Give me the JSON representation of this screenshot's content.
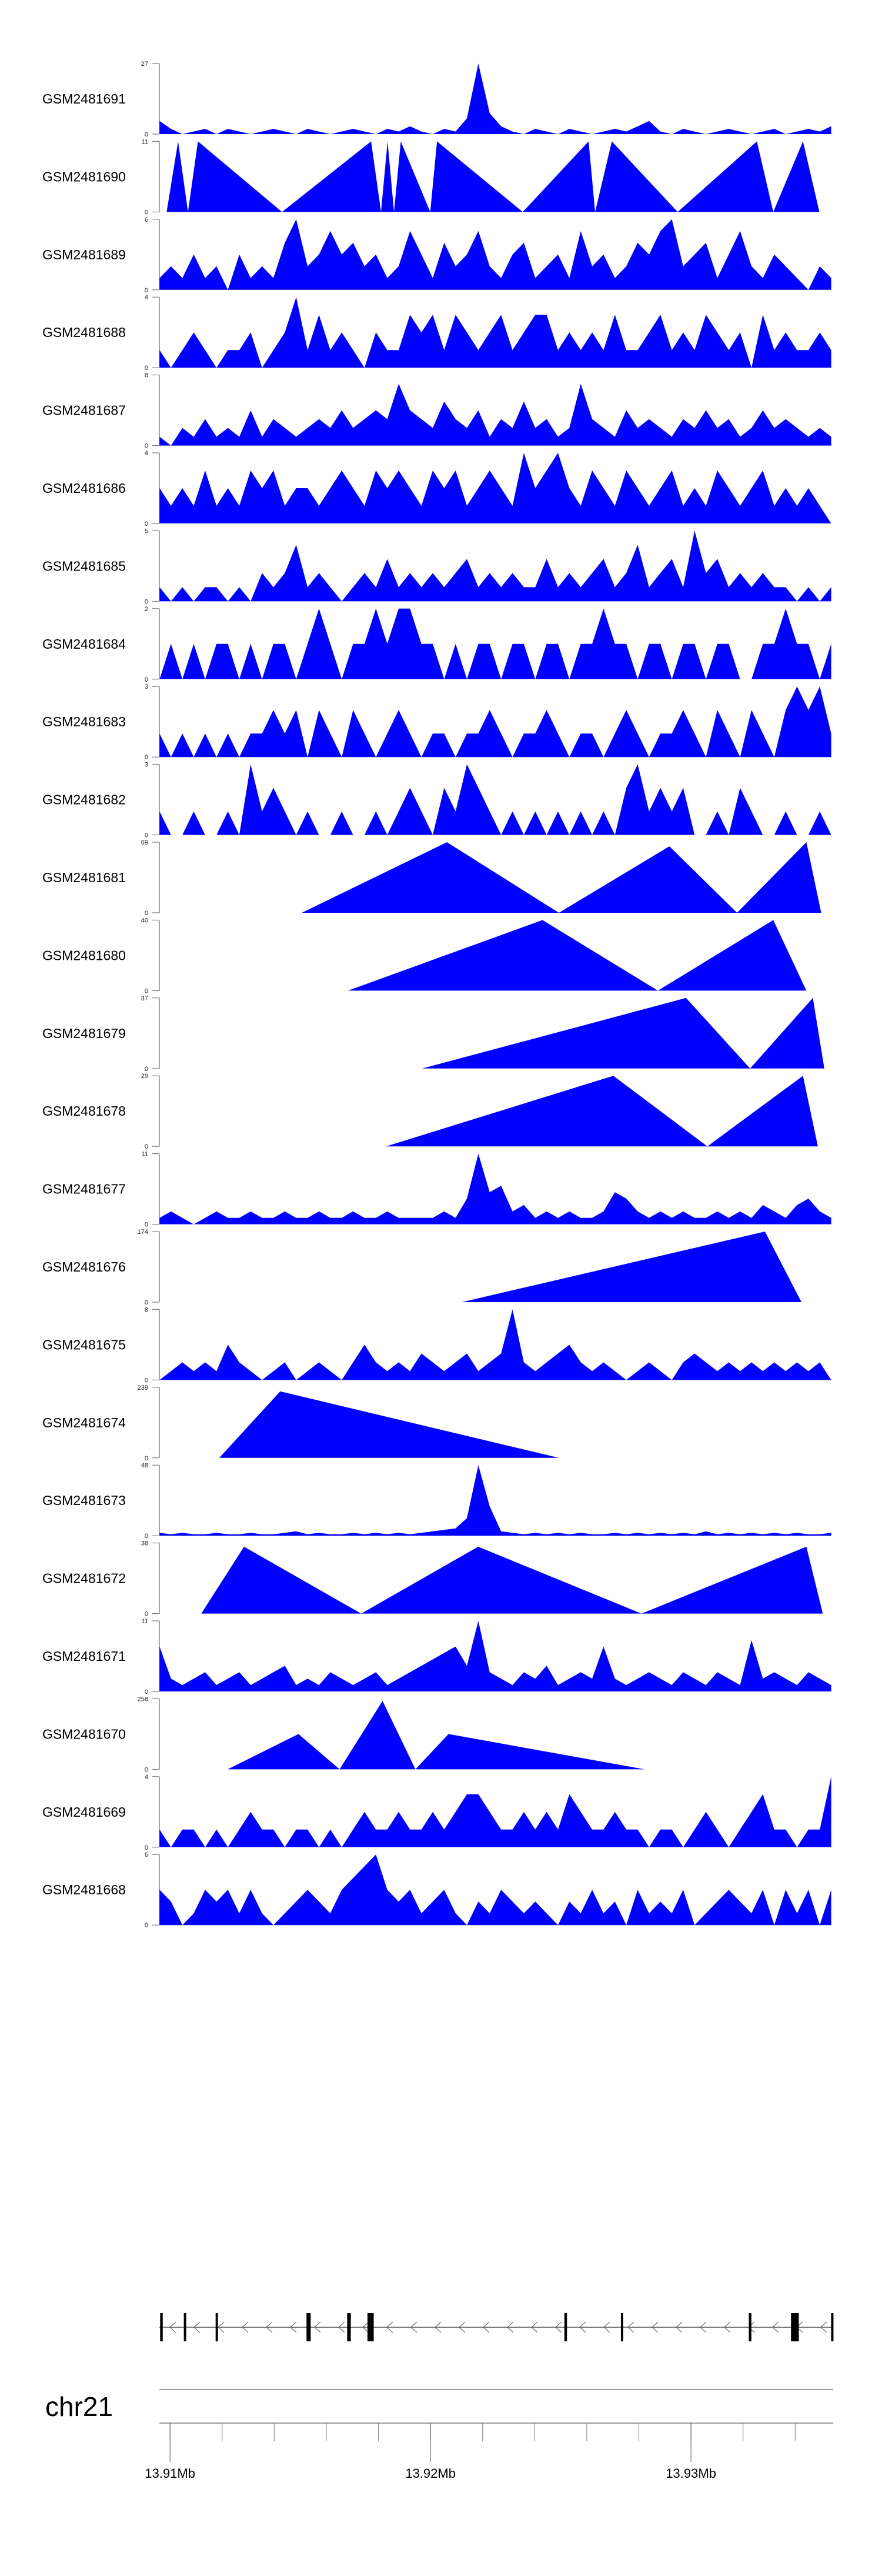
{
  "chart_data": {
    "type": "area",
    "title": "",
    "chromosome": "chr21",
    "xlim_kb": [
      13909.59,
      13935.46
    ],
    "x_ticks": [
      {
        "kb": 13910,
        "label": "13.91Mb"
      },
      {
        "kb": 13920,
        "label": "13.92Mb"
      },
      {
        "kb": 13930,
        "label": "13.93Mb"
      }
    ],
    "minor_tick_step_kb": 2,
    "fill_color": "#0000ff",
    "gene": {
      "strand": "-",
      "exons_kb": [
        [
          13909.62,
          13909.72
        ],
        [
          13910.53,
          13910.58
        ],
        [
          13911.75,
          13911.8
        ],
        [
          13915.24,
          13915.4
        ],
        [
          13916.8,
          13916.94
        ],
        [
          13917.58,
          13917.82
        ],
        [
          13925.14,
          13925.24
        ],
        [
          13927.31,
          13927.4
        ],
        [
          13932.22,
          13932.32
        ],
        [
          13933.84,
          13934.14
        ],
        [
          13935.38,
          13935.46
        ]
      ]
    },
    "bin_start_kb": 13909.6,
    "bin_step_kb": 0.437,
    "tracks": [
      {
        "name": "GSM2481691",
        "ymax": 27,
        "values": [
          5,
          2,
          0,
          1,
          2,
          0,
          2,
          1,
          0,
          1,
          2,
          1,
          0,
          2,
          1,
          0,
          1,
          2,
          1,
          0,
          2,
          1,
          3,
          1,
          0,
          2,
          1,
          6,
          27,
          8,
          3,
          1,
          0,
          2,
          1,
          0,
          2,
          1,
          0,
          1,
          2,
          1,
          3,
          5,
          1,
          0,
          2,
          1,
          0,
          1,
          2,
          1,
          0,
          1,
          2,
          0,
          1,
          2,
          1,
          3
        ]
      },
      {
        "name": "GSM2481690",
        "ymax": 11,
        "points": [
          [
            13909.87,
            0
          ],
          [
            13910.31,
            11
          ],
          [
            13910.69,
            0
          ],
          [
            13911.07,
            11
          ],
          [
            13914.3,
            0
          ],
          [
            13917.72,
            11
          ],
          [
            13918.1,
            0
          ],
          [
            13918.35,
            11
          ],
          [
            13918.6,
            0
          ],
          [
            13918.86,
            11
          ],
          [
            13919.99,
            0
          ],
          [
            13920.25,
            11
          ],
          [
            13923.54,
            0
          ],
          [
            13926.07,
            11
          ],
          [
            13926.32,
            0
          ],
          [
            13926.96,
            11
          ],
          [
            13929.49,
            0
          ],
          [
            13932.53,
            11
          ],
          [
            13933.16,
            0
          ],
          [
            13934.3,
            11
          ],
          [
            13934.93,
            0
          ]
        ]
      },
      {
        "name": "GSM2481689",
        "ymax": 6,
        "values": [
          1,
          2,
          1,
          3,
          1,
          2,
          0,
          3,
          1,
          2,
          1,
          4,
          6,
          2,
          3,
          5,
          3,
          4,
          2,
          3,
          1,
          2,
          5,
          3,
          1,
          4,
          2,
          3,
          5,
          2,
          1,
          3,
          4,
          1,
          2,
          3,
          1,
          5,
          2,
          3,
          1,
          2,
          4,
          3,
          5,
          6,
          2,
          3,
          4,
          1,
          3,
          5,
          2,
          1,
          3,
          2,
          1,
          0,
          2,
          1
        ]
      },
      {
        "name": "GSM2481688",
        "ymax": 4,
        "values": [
          1,
          0,
          1,
          2,
          1,
          0,
          1,
          1,
          2,
          0,
          1,
          2,
          4,
          1,
          3,
          1,
          2,
          1,
          0,
          2,
          1,
          1,
          3,
          2,
          3,
          1,
          3,
          2,
          1,
          2,
          3,
          1,
          2,
          3,
          3,
          1,
          2,
          1,
          2,
          1,
          3,
          1,
          1,
          2,
          3,
          1,
          2,
          1,
          3,
          2,
          1,
          2,
          0,
          3,
          1,
          2,
          1,
          1,
          2,
          1
        ]
      },
      {
        "name": "GSM2481687",
        "ymax": 8,
        "values": [
          1,
          0,
          2,
          1,
          3,
          1,
          2,
          1,
          4,
          1,
          3,
          2,
          1,
          2,
          3,
          2,
          4,
          2,
          3,
          4,
          3,
          7,
          4,
          3,
          2,
          5,
          3,
          2,
          4,
          1,
          3,
          2,
          5,
          2,
          3,
          1,
          2,
          7,
          3,
          2,
          1,
          4,
          2,
          3,
          2,
          1,
          3,
          2,
          4,
          2,
          3,
          1,
          2,
          4,
          2,
          3,
          2,
          1,
          2,
          1
        ]
      },
      {
        "name": "GSM2481686",
        "ymax": 4,
        "values": [
          2,
          1,
          2,
          1,
          3,
          1,
          2,
          1,
          3,
          2,
          3,
          1,
          2,
          2,
          1,
          2,
          3,
          2,
          1,
          3,
          2,
          3,
          2,
          1,
          3,
          2,
          3,
          1,
          2,
          3,
          2,
          1,
          4,
          2,
          3,
          4,
          2,
          1,
          3,
          2,
          1,
          3,
          2,
          1,
          2,
          3,
          1,
          2,
          1,
          3,
          2,
          1,
          2,
          3,
          1,
          2,
          1,
          2,
          1,
          0
        ]
      },
      {
        "name": "GSM2481685",
        "ymax": 5,
        "values": [
          1,
          0,
          1,
          0,
          1,
          1,
          0,
          1,
          0,
          2,
          1,
          2,
          4,
          1,
          2,
          1,
          0,
          1,
          2,
          1,
          3,
          1,
          2,
          1,
          2,
          1,
          2,
          3,
          1,
          2,
          1,
          2,
          1,
          1,
          3,
          1,
          2,
          1,
          2,
          3,
          1,
          2,
          4,
          1,
          2,
          3,
          1,
          5,
          2,
          3,
          1,
          2,
          1,
          2,
          1,
          1,
          0,
          1,
          0,
          1
        ]
      },
      {
        "name": "GSM2481684",
        "ymax": 2,
        "values": [
          0,
          1,
          0,
          1,
          0,
          1,
          1,
          0,
          1,
          0,
          1,
          1,
          0,
          1,
          2,
          1,
          0,
          1,
          1,
          2,
          1,
          2,
          2,
          1,
          1,
          0,
          1,
          0,
          1,
          1,
          0,
          1,
          1,
          0,
          1,
          1,
          0,
          1,
          1,
          2,
          1,
          1,
          0,
          1,
          1,
          0,
          1,
          1,
          0,
          1,
          1,
          0,
          0,
          1,
          1,
          2,
          1,
          1,
          0,
          1
        ]
      },
      {
        "name": "GSM2481683",
        "ymax": 3,
        "values": [
          1,
          0,
          1,
          0,
          1,
          0,
          1,
          0,
          1,
          1,
          2,
          1,
          2,
          0,
          2,
          1,
          0,
          2,
          1,
          0,
          1,
          2,
          1,
          0,
          1,
          1,
          0,
          1,
          1,
          2,
          1,
          0,
          1,
          1,
          2,
          1,
          0,
          1,
          1,
          0,
          1,
          2,
          1,
          0,
          1,
          1,
          2,
          1,
          0,
          2,
          1,
          0,
          2,
          1,
          0,
          2,
          3,
          2,
          3,
          1
        ]
      },
      {
        "name": "GSM2481682",
        "ymax": 3,
        "values": [
          1,
          0,
          0,
          1,
          0,
          0,
          1,
          0,
          3,
          1,
          2,
          1,
          0,
          1,
          0,
          0,
          1,
          0,
          0,
          1,
          0,
          1,
          2,
          1,
          0,
          2,
          1,
          3,
          2,
          1,
          0,
          1,
          0,
          1,
          0,
          1,
          0,
          1,
          0,
          1,
          0,
          2,
          3,
          1,
          2,
          1,
          2,
          0,
          0,
          1,
          0,
          2,
          1,
          0,
          0,
          1,
          0,
          0,
          1,
          0
        ]
      },
      {
        "name": "GSM2481681",
        "ymax": 69,
        "points": [
          [
            13915.06,
            0
          ],
          [
            13920.63,
            69
          ],
          [
            13924.93,
            0
          ],
          [
            13929.17,
            65
          ],
          [
            13931.77,
            0
          ],
          [
            13934.43,
            69
          ],
          [
            13935.0,
            0
          ]
        ]
      },
      {
        "name": "GSM2481680",
        "ymax": 40,
        "points": [
          [
            13916.83,
            0
          ],
          [
            13924.3,
            40
          ],
          [
            13928.73,
            0
          ],
          [
            13933.16,
            40
          ],
          [
            13934.43,
            0
          ]
        ]
      },
      {
        "name": "GSM2481679",
        "ymax": 37,
        "points": [
          [
            13919.68,
            0
          ],
          [
            13929.81,
            37
          ],
          [
            13932.27,
            0
          ],
          [
            13934.68,
            37
          ],
          [
            13935.12,
            0
          ]
        ]
      },
      {
        "name": "GSM2481678",
        "ymax": 29,
        "points": [
          [
            13918.29,
            0
          ],
          [
            13927.02,
            29
          ],
          [
            13930.63,
            0
          ],
          [
            13934.3,
            29
          ],
          [
            13934.87,
            0
          ]
        ]
      },
      {
        "name": "GSM2481677",
        "ymax": 11,
        "values": [
          1,
          2,
          1,
          0,
          1,
          2,
          1,
          1,
          2,
          1,
          1,
          2,
          1,
          1,
          2,
          1,
          1,
          2,
          1,
          1,
          2,
          1,
          1,
          1,
          1,
          2,
          1,
          4,
          11,
          5,
          6,
          2,
          3,
          1,
          2,
          1,
          2,
          1,
          1,
          2,
          5,
          4,
          2,
          1,
          2,
          1,
          2,
          1,
          1,
          2,
          1,
          2,
          1,
          3,
          2,
          1,
          3,
          4,
          2,
          1
        ]
      },
      {
        "name": "GSM2481676",
        "ymax": 174,
        "points": [
          [
            13921.2,
            0
          ],
          [
            13932.84,
            174
          ],
          [
            13934.24,
            0
          ]
        ]
      },
      {
        "name": "GSM2481675",
        "ymax": 8,
        "values": [
          0,
          1,
          2,
          1,
          2,
          1,
          4,
          2,
          1,
          0,
          1,
          2,
          0,
          1,
          2,
          1,
          0,
          2,
          4,
          2,
          1,
          2,
          1,
          3,
          2,
          1,
          2,
          3,
          1,
          2,
          3,
          8,
          2,
          1,
          2,
          3,
          4,
          2,
          1,
          2,
          1,
          0,
          1,
          2,
          1,
          0,
          2,
          3,
          2,
          1,
          2,
          1,
          2,
          1,
          2,
          1,
          2,
          1,
          2,
          0
        ]
      },
      {
        "name": "GSM2481674",
        "ymax": 239,
        "points": [
          [
            13911.89,
            0
          ],
          [
            13914.23,
            225
          ],
          [
            13924.93,
            0
          ]
        ]
      },
      {
        "name": "GSM2481673",
        "ymax": 48,
        "values": [
          2,
          1,
          2,
          1,
          1,
          2,
          1,
          1,
          2,
          1,
          1,
          2,
          3,
          1,
          2,
          1,
          1,
          2,
          1,
          2,
          1,
          2,
          1,
          2,
          3,
          4,
          5,
          12,
          48,
          20,
          3,
          2,
          1,
          2,
          1,
          2,
          1,
          2,
          1,
          1,
          2,
          1,
          2,
          1,
          2,
          1,
          2,
          1,
          3,
          1,
          2,
          1,
          2,
          1,
          2,
          1,
          2,
          1,
          1,
          2
        ]
      },
      {
        "name": "GSM2481672",
        "ymax": 38,
        "points": [
          [
            13911.2,
            0
          ],
          [
            13912.84,
            36
          ],
          [
            13917.34,
            0
          ],
          [
            13921.83,
            36
          ],
          [
            13928.1,
            0
          ],
          [
            13934.43,
            36
          ],
          [
            13935.06,
            0
          ]
        ]
      },
      {
        "name": "GSM2481671",
        "ymax": 11,
        "values": [
          7,
          2,
          1,
          2,
          3,
          1,
          2,
          3,
          1,
          2,
          3,
          4,
          1,
          2,
          1,
          3,
          2,
          1,
          2,
          3,
          1,
          2,
          3,
          4,
          5,
          6,
          7,
          4,
          11,
          3,
          2,
          1,
          3,
          2,
          4,
          1,
          2,
          3,
          2,
          7,
          2,
          1,
          2,
          3,
          2,
          1,
          3,
          2,
          1,
          3,
          2,
          1,
          8,
          2,
          3,
          2,
          1,
          3,
          2,
          1
        ]
      },
      {
        "name": "GSM2481670",
        "ymax": 258,
        "points": [
          [
            13912.21,
            0
          ],
          [
            13914.93,
            129
          ],
          [
            13916.51,
            0
          ],
          [
            13918.16,
            250
          ],
          [
            13919.42,
            0
          ],
          [
            13920.69,
            129
          ],
          [
            13928.22,
            0
          ]
        ]
      },
      {
        "name": "GSM2481669",
        "ymax": 4,
        "values": [
          1,
          0,
          1,
          1,
          0,
          1,
          0,
          1,
          2,
          1,
          1,
          0,
          1,
          1,
          0,
          1,
          0,
          1,
          2,
          1,
          1,
          2,
          1,
          1,
          2,
          1,
          2,
          3,
          3,
          2,
          1,
          1,
          2,
          1,
          2,
          1,
          3,
          2,
          1,
          1,
          2,
          1,
          1,
          0,
          1,
          1,
          0,
          1,
          2,
          1,
          0,
          1,
          2,
          3,
          1,
          1,
          0,
          1,
          1,
          4
        ]
      },
      {
        "name": "GSM2481668",
        "ymax": 6,
        "values": [
          3,
          2,
          0,
          1,
          3,
          2,
          3,
          1,
          3,
          1,
          0,
          1,
          2,
          3,
          2,
          1,
          3,
          4,
          5,
          6,
          3,
          2,
          3,
          1,
          2,
          3,
          1,
          0,
          2,
          1,
          3,
          2,
          1,
          2,
          1,
          0,
          2,
          1,
          3,
          1,
          2,
          0,
          3,
          1,
          2,
          1,
          3,
          0,
          1,
          2,
          3,
          2,
          1,
          3,
          0,
          3,
          1,
          3,
          0,
          3
        ]
      }
    ]
  }
}
